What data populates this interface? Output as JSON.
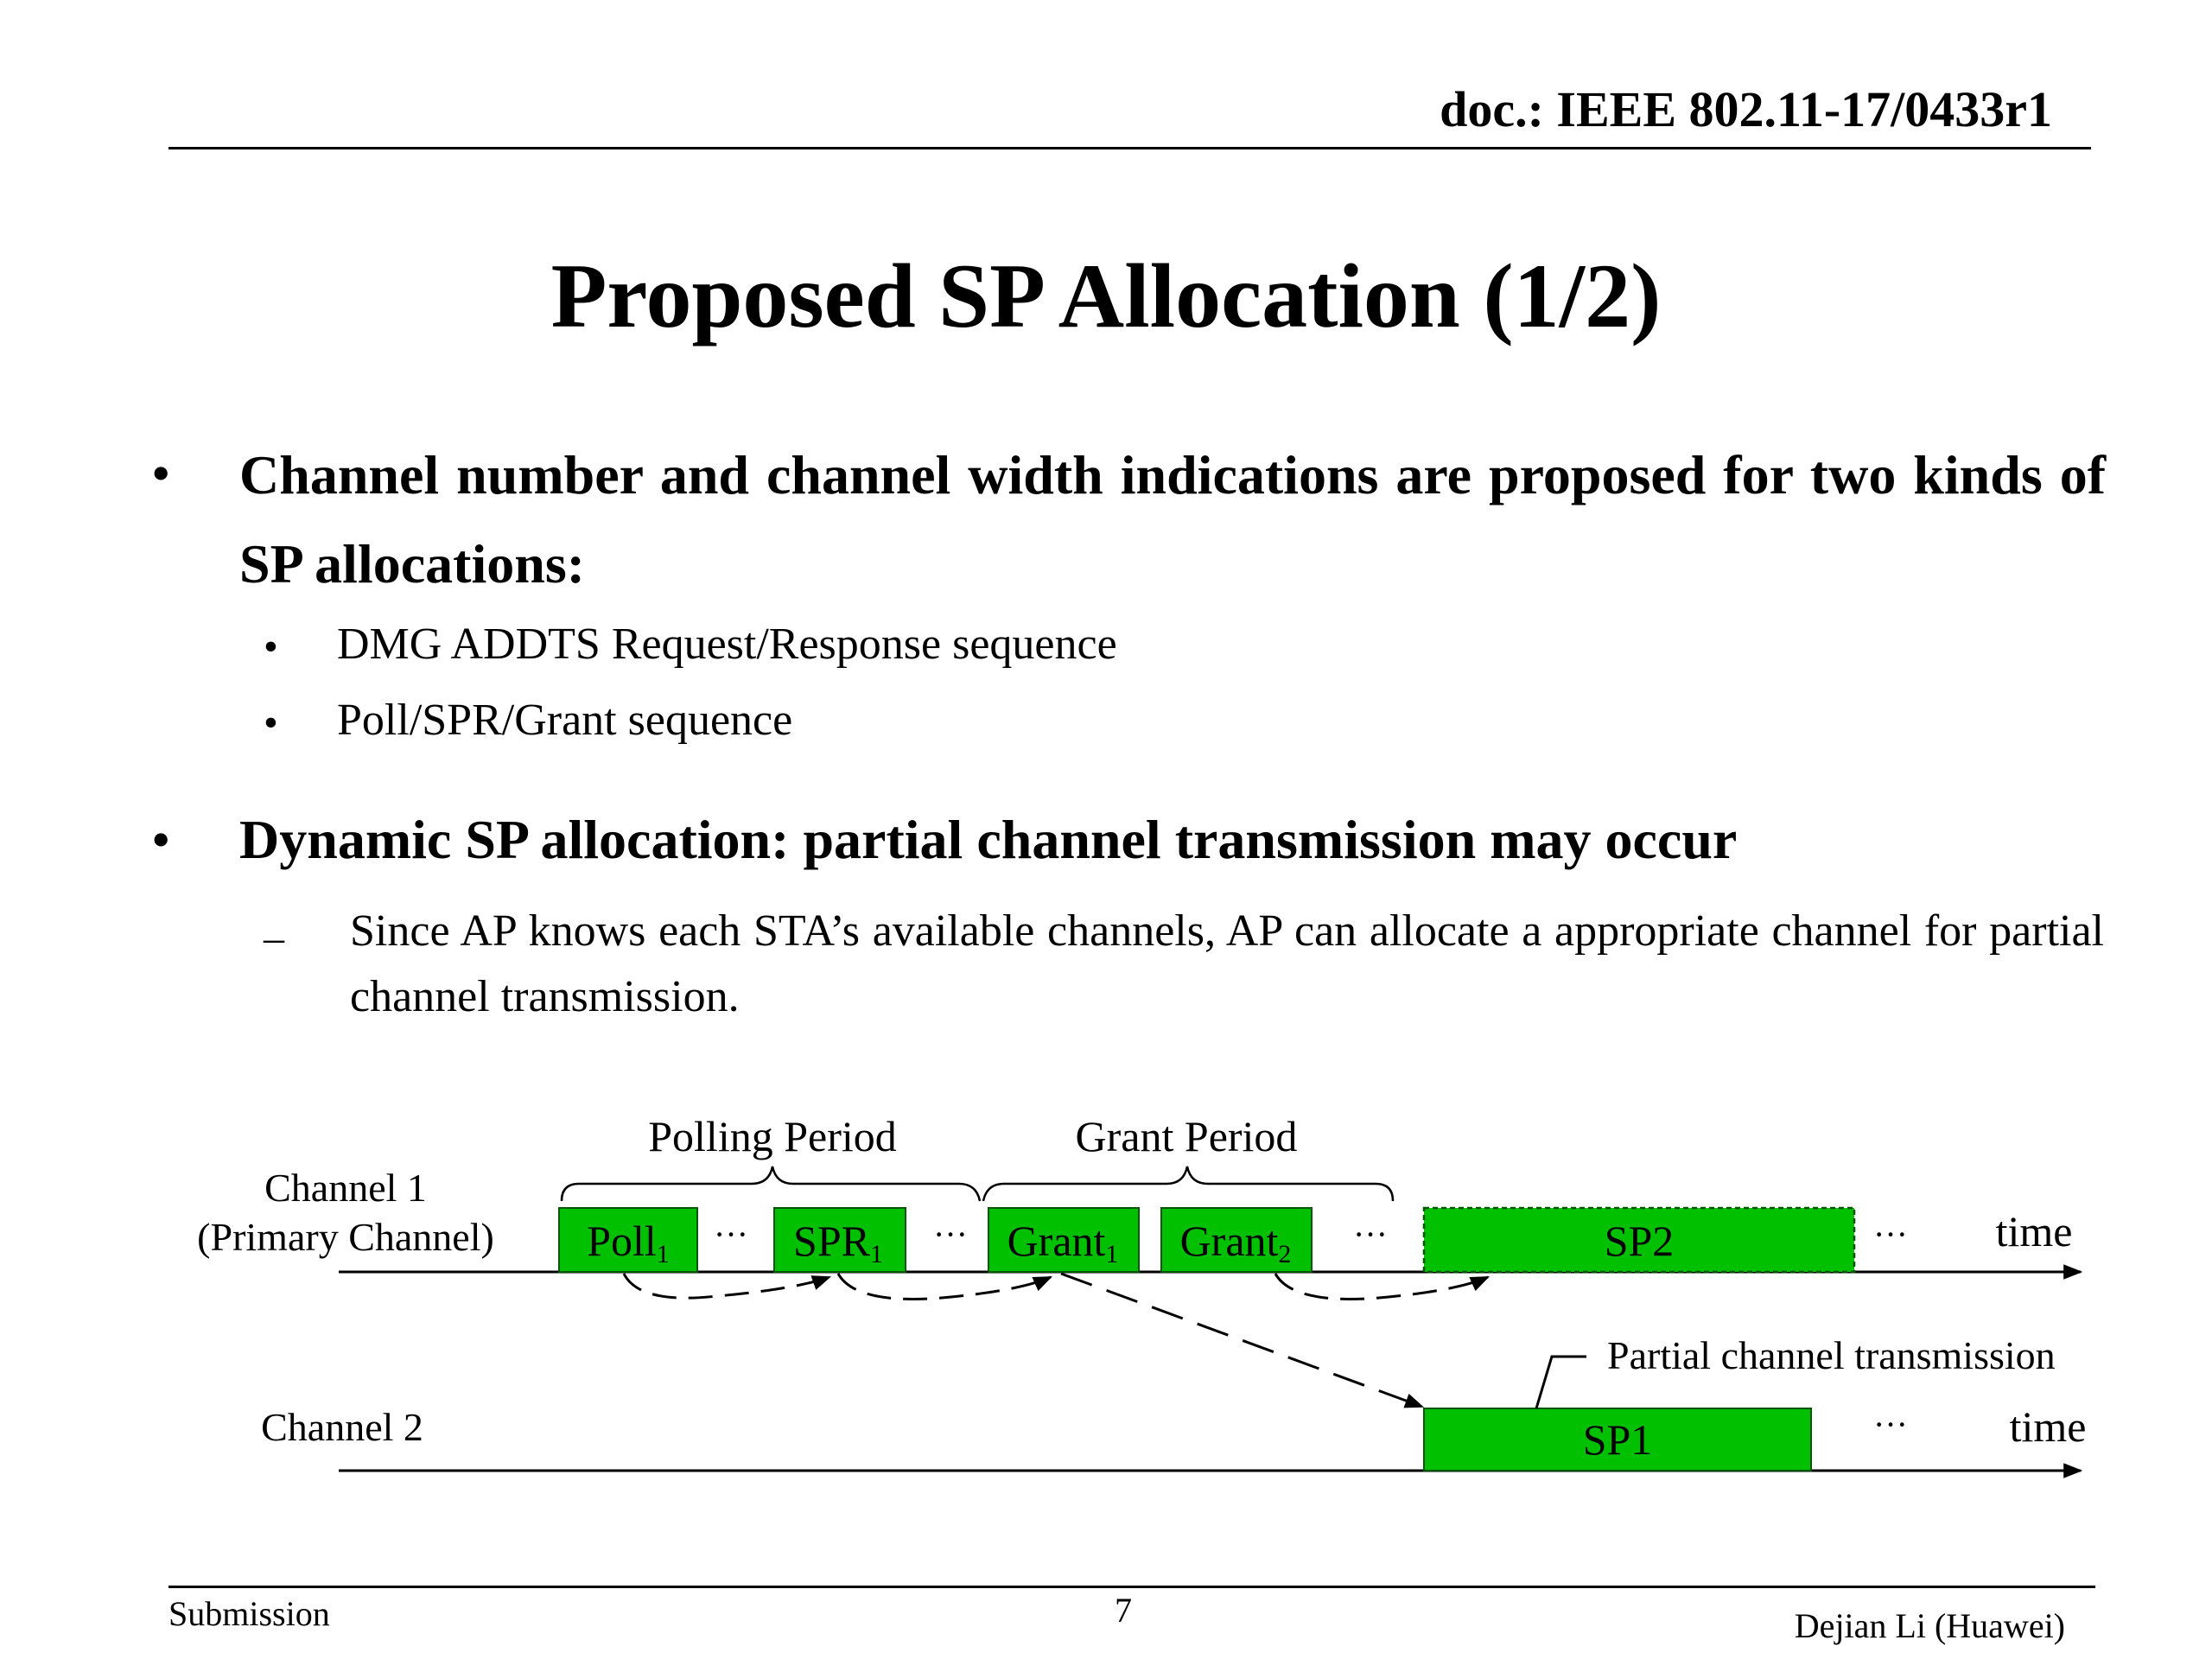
{
  "header": {
    "doc_id": "doc.: IEEE 802.11-17/0433r1"
  },
  "title": "Proposed SP Allocation (1/2)",
  "bullets": [
    {
      "marker": "•",
      "text": "Channel number and channel width indications are proposed for two kinds of SP allocations:",
      "subitems": [
        {
          "marker": "•",
          "text": "DMG ADDTS Request/Response sequence"
        },
        {
          "marker": "•",
          "text": "Poll/SPR/Grant sequence"
        }
      ]
    },
    {
      "marker": "•",
      "text": "Dynamic SP allocation: partial channel transmission may occur",
      "subitems": [
        {
          "marker": "–",
          "text": "Since AP knows each STA’s available channels, AP can allocate a appropriate channel for partial channel transmission."
        }
      ]
    }
  ],
  "diagram": {
    "channel1_label_line1": "Channel 1",
    "channel1_label_line2": "(Primary Channel)",
    "channel2_label": "Channel 2",
    "polling_period": "Polling Period",
    "grant_period": "Grant Period",
    "poll": {
      "base": "Poll",
      "sub": "1"
    },
    "spr": {
      "base": "SPR",
      "sub": "1"
    },
    "grant1": {
      "base": "Grant",
      "sub": "1"
    },
    "grant2": {
      "base": "Grant",
      "sub": "2"
    },
    "sp2": "SP2",
    "sp1": "SP1",
    "ellipsis": "···",
    "time": "time",
    "partial_label": "Partial channel transmission",
    "box_fill": "#00c000",
    "box_stroke": "#005500"
  },
  "footer": {
    "left": "Submission",
    "page": "7",
    "right": "Dejian Li (Huawei)"
  }
}
